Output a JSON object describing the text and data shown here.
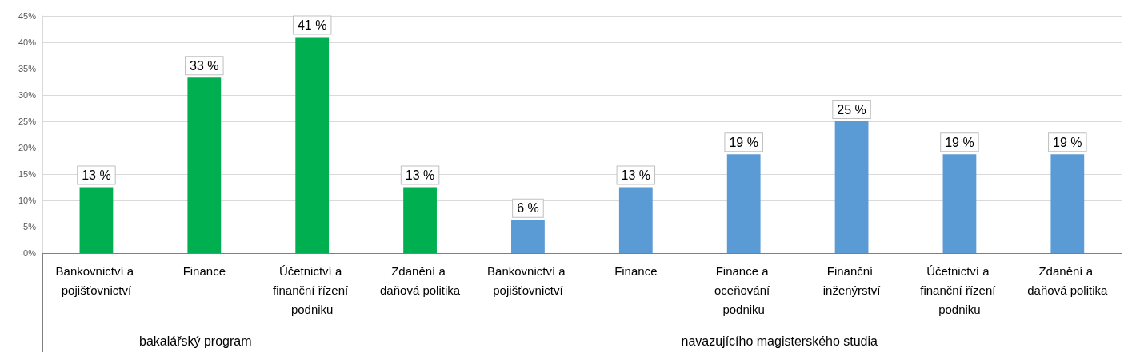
{
  "chart_data": {
    "type": "bar",
    "categories": [
      "Bankovnictví a pojišťovnictví",
      "Finance",
      "Účetnictví a finanční řízení podniku",
      "Zdanění a daňová politika",
      "Bankovnictví a pojišťovnictví",
      "Finance",
      "Finance a oceňování podniku",
      "Finanční inženýrství",
      "Účetnictví a finanční řízení podniku",
      "Zdanění a daňová politika"
    ],
    "values": [
      12.5,
      33.3,
      41,
      12.5,
      6.25,
      12.5,
      18.75,
      25,
      18.75,
      18.75
    ],
    "value_labels": [
      "13 %",
      "33 %",
      "41 %",
      "13 %",
      "6 %",
      "13 %",
      "19 %",
      "25 %",
      "19 %",
      "19 %"
    ],
    "colors": [
      "#00b050",
      "#00b050",
      "#00b050",
      "#00b050",
      "#5b9bd5",
      "#5b9bd5",
      "#5b9bd5",
      "#5b9bd5",
      "#5b9bd5",
      "#5b9bd5"
    ],
    "annotations": [
      "bakalářský program",
      "navazujícího magisterského studia"
    ],
    "ylim": [
      0,
      45
    ],
    "yticks": [
      {
        "value": 0,
        "label": "0%"
      },
      {
        "value": 5,
        "label": "5%"
      },
      {
        "value": 10,
        "label": "10%"
      },
      {
        "value": 15,
        "label": "15%"
      },
      {
        "value": 20,
        "label": "20%"
      },
      {
        "value": 25,
        "label": "25%"
      },
      {
        "value": 30,
        "label": "30%"
      },
      {
        "value": 35,
        "label": "35%"
      },
      {
        "value": 40,
        "label": "40%"
      },
      {
        "value": 45,
        "label": "45%"
      }
    ],
    "grid": "y"
  }
}
